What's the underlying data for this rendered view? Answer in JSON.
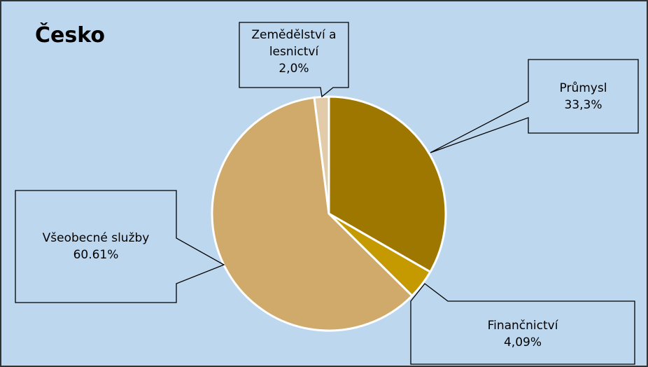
{
  "chart_data": {
    "type": "pie",
    "title": "Česko",
    "categories": [
      "Průmysl",
      "Finančnictví",
      "Všeobecné služby",
      "Zemědělství a lesnictví"
    ],
    "values": [
      33.3,
      4.09,
      60.61,
      2.0
    ],
    "value_labels": [
      "33,3%",
      "4,09%",
      "60.61%",
      "2,0%"
    ],
    "colors": [
      "#9e7700",
      "#c49a00",
      "#d0aa6a",
      "#e2cba8"
    ]
  }
}
